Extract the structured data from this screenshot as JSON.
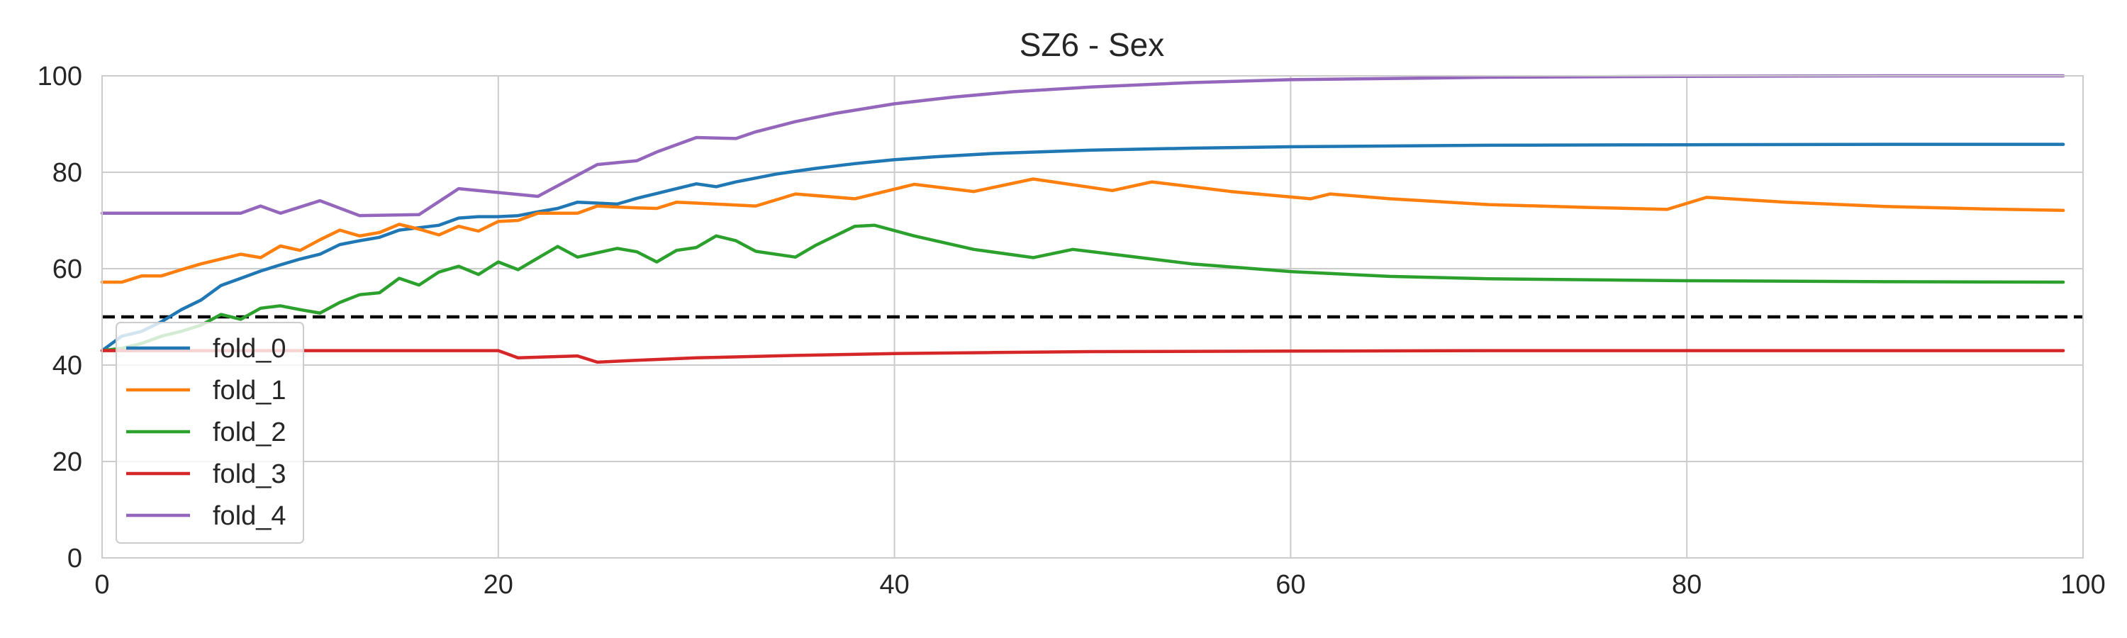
{
  "chart_data": {
    "type": "line",
    "title": "SZ6 - Sex",
    "xlabel": "",
    "ylabel": "",
    "xlim": [
      0,
      100
    ],
    "ylim": [
      0,
      100
    ],
    "x_ticks": [
      0,
      20,
      40,
      60,
      80,
      100
    ],
    "y_ticks": [
      0,
      20,
      40,
      60,
      80,
      100
    ],
    "grid": true,
    "legend_position": "lower-left",
    "reference_line": {
      "y": 50,
      "style": "dashed",
      "color": "#000000"
    },
    "series": [
      {
        "name": "fold_0",
        "color": "#1f77b4",
        "points": [
          [
            0,
            43
          ],
          [
            1,
            46
          ],
          [
            2,
            47
          ],
          [
            3,
            49
          ],
          [
            4,
            51.5
          ],
          [
            5,
            53.5
          ],
          [
            6,
            56.5
          ],
          [
            7,
            58
          ],
          [
            8,
            59.5
          ],
          [
            9,
            60.8
          ],
          [
            10,
            62
          ],
          [
            11,
            63
          ],
          [
            12,
            65
          ],
          [
            13,
            65.8
          ],
          [
            14,
            66.5
          ],
          [
            15,
            68
          ],
          [
            16,
            68.5
          ],
          [
            17,
            69
          ],
          [
            18,
            70.5
          ],
          [
            19,
            70.8
          ],
          [
            20,
            70.8
          ],
          [
            21,
            71
          ],
          [
            22,
            71.8
          ],
          [
            23,
            72.5
          ],
          [
            24,
            73.8
          ],
          [
            25,
            73.6
          ],
          [
            26,
            73.4
          ],
          [
            27,
            74.6
          ],
          [
            28,
            75.6
          ],
          [
            29,
            76.6
          ],
          [
            30,
            77.6
          ],
          [
            31,
            77
          ],
          [
            32,
            78
          ],
          [
            33,
            78.8
          ],
          [
            34,
            79.6
          ],
          [
            35,
            80.2
          ],
          [
            36,
            80.8
          ],
          [
            37,
            81.3
          ],
          [
            38,
            81.8
          ],
          [
            39,
            82.2
          ],
          [
            40,
            82.6
          ],
          [
            42,
            83.2
          ],
          [
            45,
            83.9
          ],
          [
            50,
            84.6
          ],
          [
            55,
            85
          ],
          [
            60,
            85.3
          ],
          [
            70,
            85.6
          ],
          [
            80,
            85.7
          ],
          [
            90,
            85.8
          ],
          [
            99,
            85.8
          ]
        ]
      },
      {
        "name": "fold_1",
        "color": "#ff7f0e",
        "points": [
          [
            0,
            57.2
          ],
          [
            1,
            57.2
          ],
          [
            2,
            58.5
          ],
          [
            3,
            58.5
          ],
          [
            4,
            59.8
          ],
          [
            5,
            61
          ],
          [
            6,
            62
          ],
          [
            7,
            63
          ],
          [
            8,
            62.3
          ],
          [
            9,
            64.7
          ],
          [
            10,
            63.8
          ],
          [
            11,
            66
          ],
          [
            12,
            68
          ],
          [
            13,
            66.8
          ],
          [
            14,
            67.5
          ],
          [
            15,
            69.2
          ],
          [
            16,
            68.2
          ],
          [
            17,
            67
          ],
          [
            18,
            68.8
          ],
          [
            19,
            67.8
          ],
          [
            20,
            69.8
          ],
          [
            21,
            70
          ],
          [
            22,
            71.5
          ],
          [
            23,
            71.5
          ],
          [
            24,
            71.5
          ],
          [
            25,
            73
          ],
          [
            26,
            72.8
          ],
          [
            27,
            72.6
          ],
          [
            28,
            72.5
          ],
          [
            29,
            73.8
          ],
          [
            30,
            73.6
          ],
          [
            31,
            73.4
          ],
          [
            32,
            73.2
          ],
          [
            33,
            73
          ],
          [
            35,
            75.5
          ],
          [
            38,
            74.5
          ],
          [
            41,
            77.5
          ],
          [
            44,
            76
          ],
          [
            47,
            78.6
          ],
          [
            51,
            76.2
          ],
          [
            53,
            78
          ],
          [
            57,
            76
          ],
          [
            61,
            74.5
          ],
          [
            62,
            75.5
          ],
          [
            65,
            74.5
          ],
          [
            70,
            73.3
          ],
          [
            75,
            72.7
          ],
          [
            79,
            72.3
          ],
          [
            81,
            74.8
          ],
          [
            85,
            73.8
          ],
          [
            90,
            72.9
          ],
          [
            95,
            72.4
          ],
          [
            99,
            72.1
          ]
        ]
      },
      {
        "name": "fold_2",
        "color": "#2ca02c",
        "points": [
          [
            0,
            43
          ],
          [
            1,
            43.5
          ],
          [
            2,
            44.5
          ],
          [
            3,
            46
          ],
          [
            4,
            47
          ],
          [
            5,
            48.3
          ],
          [
            6,
            50.5
          ],
          [
            7,
            49.5
          ],
          [
            8,
            51.8
          ],
          [
            9,
            52.3
          ],
          [
            10,
            51.5
          ],
          [
            11,
            50.8
          ],
          [
            12,
            53
          ],
          [
            13,
            54.6
          ],
          [
            14,
            55
          ],
          [
            15,
            58
          ],
          [
            16,
            56.6
          ],
          [
            17,
            59.3
          ],
          [
            18,
            60.5
          ],
          [
            19,
            58.8
          ],
          [
            20,
            61.4
          ],
          [
            21,
            59.8
          ],
          [
            22,
            62.2
          ],
          [
            23,
            64.6
          ],
          [
            24,
            62.4
          ],
          [
            25,
            63.3
          ],
          [
            26,
            64.2
          ],
          [
            27,
            63.5
          ],
          [
            28,
            61.4
          ],
          [
            29,
            63.8
          ],
          [
            30,
            64.4
          ],
          [
            31,
            66.8
          ],
          [
            32,
            65.8
          ],
          [
            33,
            63.6
          ],
          [
            35,
            62.4
          ],
          [
            36,
            64.8
          ],
          [
            38,
            68.8
          ],
          [
            39,
            69
          ],
          [
            41,
            66.8
          ],
          [
            44,
            64
          ],
          [
            47,
            62.3
          ],
          [
            49,
            64
          ],
          [
            52,
            62.5
          ],
          [
            55,
            61
          ],
          [
            60,
            59.4
          ],
          [
            65,
            58.4
          ],
          [
            70,
            57.9
          ],
          [
            80,
            57.5
          ],
          [
            90,
            57.3
          ],
          [
            99,
            57.2
          ]
        ]
      },
      {
        "name": "fold_3",
        "color": "#d62728",
        "points": [
          [
            0,
            43
          ],
          [
            5,
            43
          ],
          [
            10,
            43
          ],
          [
            15,
            43
          ],
          [
            20,
            43
          ],
          [
            21,
            41.5
          ],
          [
            24,
            41.9
          ],
          [
            25,
            40.6
          ],
          [
            27,
            41
          ],
          [
            30,
            41.5
          ],
          [
            35,
            42
          ],
          [
            40,
            42.4
          ],
          [
            45,
            42.6
          ],
          [
            50,
            42.8
          ],
          [
            60,
            42.9
          ],
          [
            70,
            43
          ],
          [
            80,
            43
          ],
          [
            90,
            43
          ],
          [
            99,
            43
          ]
        ]
      },
      {
        "name": "fold_4",
        "color": "#9467bd",
        "points": [
          [
            0,
            71.5
          ],
          [
            3,
            71.5
          ],
          [
            7,
            71.5
          ],
          [
            8,
            73
          ],
          [
            9,
            71.5
          ],
          [
            11,
            74.1
          ],
          [
            13,
            71
          ],
          [
            16,
            71.2
          ],
          [
            18,
            76.6
          ],
          [
            22,
            75
          ],
          [
            25,
            81.6
          ],
          [
            27,
            82.4
          ],
          [
            28,
            84.2
          ],
          [
            30,
            87.2
          ],
          [
            32,
            87
          ],
          [
            33,
            88.4
          ],
          [
            35,
            90.5
          ],
          [
            37,
            92.2
          ],
          [
            40,
            94.2
          ],
          [
            43,
            95.6
          ],
          [
            46,
            96.7
          ],
          [
            50,
            97.7
          ],
          [
            55,
            98.6
          ],
          [
            60,
            99.2
          ],
          [
            70,
            99.7
          ],
          [
            80,
            99.9
          ],
          [
            90,
            100
          ],
          [
            99,
            100
          ]
        ]
      }
    ]
  }
}
